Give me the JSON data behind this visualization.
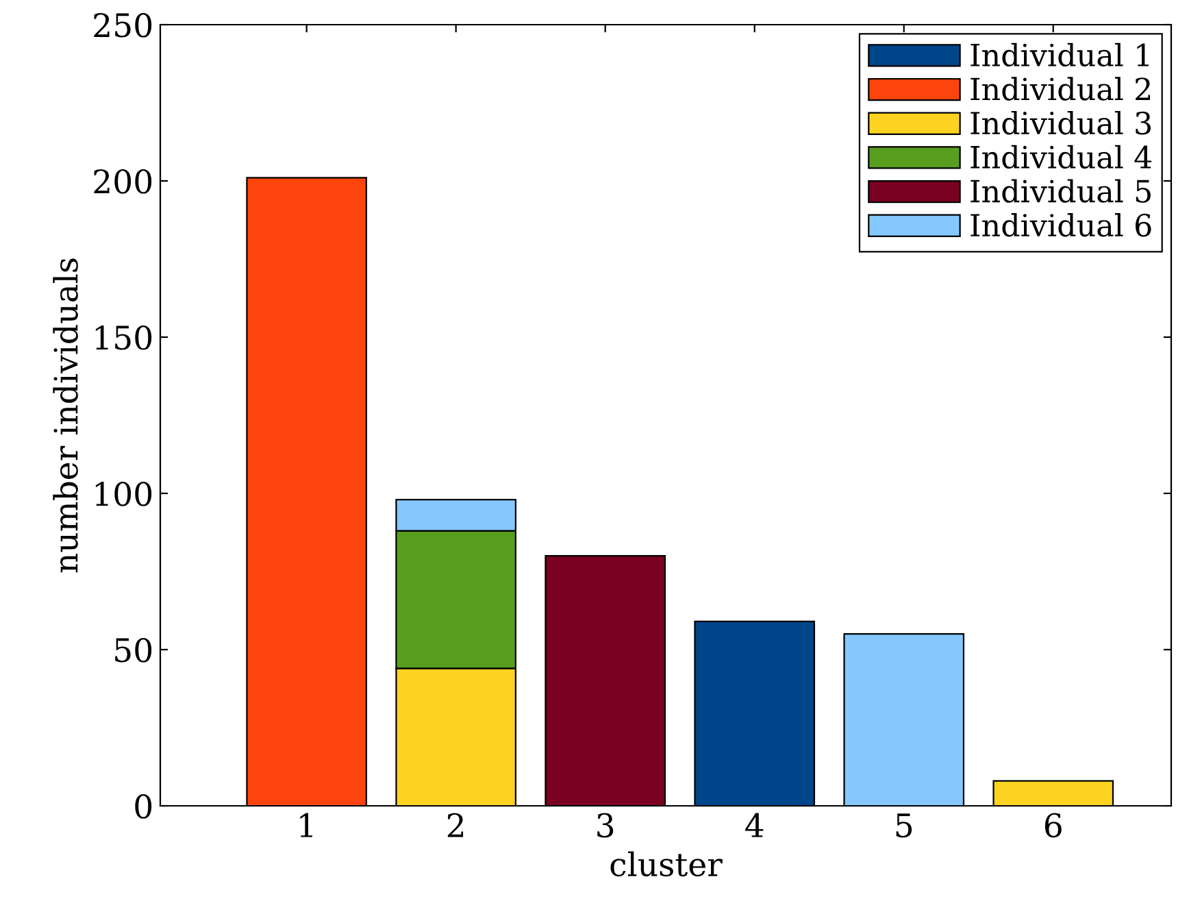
{
  "chart_data": {
    "type": "bar",
    "stacked": true,
    "xlabel": "cluster",
    "ylabel": "number individuals",
    "categories": [
      "1",
      "2",
      "3",
      "4",
      "5",
      "6"
    ],
    "series": [
      {
        "name": "Individual 1",
        "color": "#00468b",
        "values": [
          0,
          0,
          0,
          59,
          0,
          0
        ]
      },
      {
        "name": "Individual 2",
        "color": "#fc440c",
        "values": [
          201,
          0,
          0,
          0,
          0,
          0
        ]
      },
      {
        "name": "Individual 3",
        "color": "#fdd321",
        "values": [
          0,
          44,
          0,
          0,
          0,
          8
        ]
      },
      {
        "name": "Individual 4",
        "color": "#589e1f",
        "values": [
          0,
          44,
          0,
          0,
          0,
          0
        ]
      },
      {
        "name": "Individual 5",
        "color": "#7a0022",
        "values": [
          0,
          0,
          80,
          0,
          0,
          0
        ]
      },
      {
        "name": "Individual 6",
        "color": "#85c8fd",
        "values": [
          0,
          10,
          0,
          0,
          55,
          0
        ]
      }
    ],
    "ylim": [
      0,
      250
    ],
    "yticks": [
      0,
      50,
      100,
      150,
      200,
      250
    ],
    "grid": false,
    "legend": "top right"
  }
}
